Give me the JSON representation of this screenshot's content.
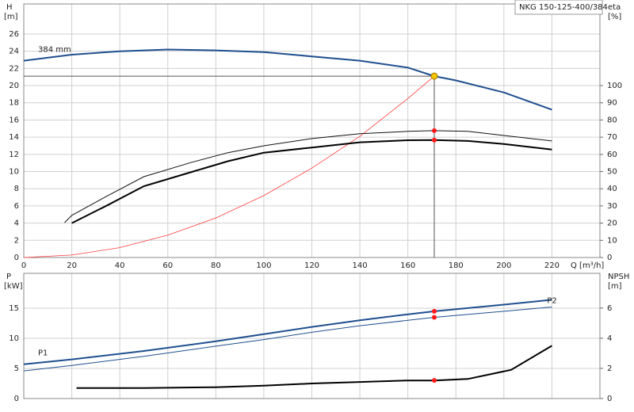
{
  "chart_data": [
    {
      "type": "line",
      "title": "NKG 150-125-400/384",
      "ylabel": "H",
      "yunit": "[m]",
      "y2label": "eta",
      "y2unit": "[%]",
      "xlabel": "Q [m³/h]",
      "xlim": [
        0,
        240
      ],
      "xticks": [
        0,
        20,
        40,
        60,
        80,
        100,
        120,
        140,
        160,
        180,
        200,
        220
      ],
      "ylim": [
        0,
        29.5
      ],
      "yticks": [
        0,
        2,
        4,
        6,
        8,
        10,
        12,
        14,
        16,
        18,
        20,
        22,
        24,
        26
      ],
      "y2lim": [
        0,
        147.5
      ],
      "y2ticks": [
        0,
        10,
        20,
        30,
        40,
        50,
        60,
        70,
        80,
        90,
        100
      ],
      "grid": true,
      "xtick_labels": true,
      "series": [
        {
          "name": "384 mm",
          "color": "#1f4f8f",
          "width": 2,
          "x": [
            0,
            20,
            40,
            60,
            80,
            100,
            120,
            140,
            160,
            171,
            180,
            200,
            220
          ],
          "values": [
            22.9,
            23.6,
            24.0,
            24.2,
            24.1,
            23.9,
            23.4,
            22.9,
            22.1,
            21.1,
            20.6,
            19.2,
            17.2
          ]
        },
        {
          "color": "#ff3b3b",
          "width": 0.8,
          "x": [
            0,
            20,
            40,
            60,
            80,
            100,
            120,
            140,
            160,
            171
          ],
          "values": [
            0,
            0.29,
            1.15,
            2.6,
            4.6,
            7.2,
            10.4,
            14.1,
            18.5,
            21.1
          ]
        },
        {
          "color": "#111111",
          "width": 1,
          "axis": "y2",
          "x": [
            17,
            20,
            35,
            50,
            70,
            85,
            100,
            120,
            140,
            160,
            171,
            185,
            200,
            220
          ],
          "values": [
            20.3,
            24.5,
            36,
            47,
            55.4,
            61,
            65,
            69.2,
            72,
            73.4,
            73.8,
            73.4,
            71,
            67.8
          ]
        },
        {
          "color": "#000000",
          "width": 2,
          "axis": "y2",
          "x": [
            20,
            35,
            50,
            70,
            85,
            100,
            120,
            140,
            160,
            171,
            185,
            200,
            220
          ],
          "values": [
            20,
            30.5,
            41.5,
            49.8,
            56,
            61,
            64,
            67,
            68.2,
            68.3,
            67.8,
            66,
            62.8
          ]
        }
      ],
      "markers": [
        {
          "x": 171,
          "y": 21.1,
          "color": "#f5c400",
          "crosshair": true
        },
        {
          "x": 171,
          "y": 73.8,
          "axis": "y2",
          "color": "#ff1a1a"
        },
        {
          "x": 171,
          "y": 68.3,
          "axis": "y2",
          "color": "#ff1a1a"
        }
      ]
    },
    {
      "type": "line",
      "ylabel": "P",
      "yunit": "[kW]",
      "y2label": "NPSH",
      "y2unit": "[m]",
      "xlim": [
        0,
        240
      ],
      "xticks": [
        0,
        20,
        40,
        60,
        80,
        100,
        120,
        140,
        160,
        180,
        200,
        220
      ],
      "ylim": [
        0,
        20.8
      ],
      "yticks": [
        0,
        5,
        10,
        15
      ],
      "y2lim": [
        0,
        8.3
      ],
      "y2ticks": [
        0,
        2,
        4,
        6
      ],
      "grid": true,
      "xtick_labels": false,
      "series": [
        {
          "name": "P1",
          "color": "#1f4f8f",
          "width": 2,
          "x": [
            0,
            20,
            50,
            80,
            100,
            120,
            140,
            160,
            171,
            200,
            220
          ],
          "values": [
            5.7,
            6.5,
            7.9,
            9.5,
            10.7,
            11.9,
            13.0,
            14.0,
            14.5,
            15.6,
            16.4
          ]
        },
        {
          "name": "P2",
          "color": "#1f4f8f",
          "width": 1,
          "x": [
            0,
            20,
            50,
            80,
            100,
            120,
            140,
            160,
            171,
            200,
            220
          ],
          "values": [
            4.6,
            5.5,
            7.0,
            8.7,
            9.8,
            11.0,
            12.1,
            13.0,
            13.5,
            14.5,
            15.2
          ]
        },
        {
          "color": "#000000",
          "width": 2,
          "axis": "y2",
          "x": [
            22,
            50,
            80,
            100,
            120,
            140,
            160,
            171,
            185,
            203,
            220
          ],
          "values": [
            0.7,
            0.7,
            0.75,
            0.85,
            1.0,
            1.1,
            1.2,
            1.2,
            1.3,
            1.9,
            3.5
          ]
        }
      ],
      "markers": [
        {
          "x": 171,
          "y": 14.5,
          "color": "#ff1a1a"
        },
        {
          "x": 171,
          "y": 13.5,
          "color": "#ff1a1a"
        },
        {
          "x": 171,
          "y": 1.2,
          "axis": "y2",
          "color": "#ff1a1a"
        }
      ]
    }
  ]
}
